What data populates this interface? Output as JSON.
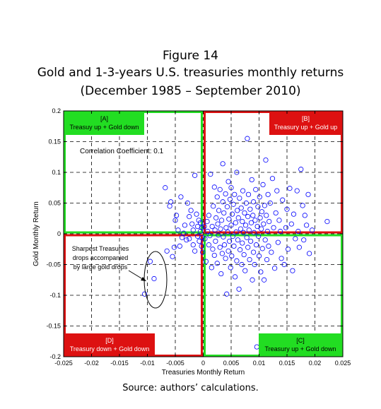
{
  "figure_label": "Figure 14",
  "title_line1": "Gold and 1-3-years U.S. treasuries monthly returns",
  "title_line2": "(December 1985 – September 2010)",
  "source_note": "Source: authors’ calculations.",
  "chart_data": {
    "type": "scatter",
    "xlabel": "Treasuries Monthly Return",
    "ylabel": "Gold Monthly Return",
    "xlim": [
      -0.025,
      0.025
    ],
    "ylim": [
      -0.2,
      0.2
    ],
    "xticks": [
      -0.025,
      -0.02,
      -0.015,
      -0.01,
      -0.005,
      0,
      0.005,
      0.01,
      0.015,
      0.02,
      0.025
    ],
    "xtick_labels": [
      "-0.025",
      "-0.02",
      "-0.015",
      "-0.01",
      "-0.005",
      "0",
      "0.005",
      "0.01",
      "0.015",
      "0.02",
      "0.025"
    ],
    "yticks": [
      -0.2,
      -0.15,
      -0.1,
      -0.05,
      0,
      0.05,
      0.1,
      0.15,
      0.2
    ],
    "ytick_labels": [
      "-0.2",
      "-0.15",
      "-0.1",
      "-0.05",
      "0",
      "0.05",
      "0.1",
      "0.15",
      "0.2"
    ],
    "grid": true,
    "marker_color": "#0000ff",
    "correlation_label": "Correlation Coefficient: 0.1",
    "quadrants": [
      {
        "id": "A",
        "tag": "[A]",
        "desc": "Treasuy up + Gold down",
        "color": "#22dd22",
        "label_color": "#000000"
      },
      {
        "id": "B",
        "tag": "[B]",
        "desc": "Treasury up + Gold up",
        "color": "#dd1111",
        "label_color": "#ffffff"
      },
      {
        "id": "C",
        "tag": "[C]",
        "desc": "Treasury up + Gold down",
        "color": "#22dd22",
        "label_color": "#000000"
      },
      {
        "id": "D",
        "tag": "[D]",
        "desc": "Treasury down + Gold down",
        "color": "#dd1111",
        "label_color": "#ffffff"
      }
    ],
    "annotation": {
      "lines": [
        "Sharpest Treasuries",
        "drops accompanied",
        "by large gold drops"
      ]
    },
    "points": [
      [
        -0.0105,
        -0.098
      ],
      [
        -0.0095,
        -0.045
      ],
      [
        -0.0088,
        -0.073
      ],
      [
        -0.0068,
        0.075
      ],
      [
        -0.0065,
        -0.028
      ],
      [
        -0.006,
        0.045
      ],
      [
        -0.0058,
        0.052
      ],
      [
        -0.0055,
        -0.037
      ],
      [
        -0.0052,
        -0.022
      ],
      [
        -0.005,
        0.022
      ],
      [
        -0.0048,
        0.03
      ],
      [
        -0.0045,
        0.006
      ],
      [
        -0.0042,
        -0.02
      ],
      [
        -0.004,
        0.06
      ],
      [
        -0.0038,
        -0.006
      ],
      [
        -0.0035,
        0.001
      ],
      [
        -0.0033,
        0.014
      ],
      [
        -0.003,
        -0.01
      ],
      [
        -0.0028,
        0.05
      ],
      [
        -0.0025,
        0.028
      ],
      [
        -0.0025,
        -0.008
      ],
      [
        -0.0022,
        0.038
      ],
      [
        -0.002,
        0.016
      ],
      [
        -0.0018,
        0.006
      ],
      [
        -0.0018,
        -0.018
      ],
      [
        -0.0015,
        0.095
      ],
      [
        -0.0015,
        -0.028
      ],
      [
        -0.0012,
        0.032
      ],
      [
        -0.001,
        0.012
      ],
      [
        -0.001,
        -0.004
      ],
      [
        -0.0008,
        0.022
      ],
      [
        -0.0007,
        -0.012
      ],
      [
        -0.0005,
        0.004
      ],
      [
        -0.0005,
        0.018
      ],
      [
        -0.0003,
        -0.02
      ],
      [
        -0.0002,
        0.01
      ],
      [
        -0.0002,
        -0.006
      ],
      [
        -0.0001,
        -0.03
      ],
      [
        0.0002,
        0.012
      ],
      [
        0.0003,
        -0.008
      ],
      [
        0.0005,
        -0.045
      ],
      [
        0.0007,
        0.02
      ],
      [
        0.0008,
        0.004
      ],
      [
        0.001,
        -0.018
      ],
      [
        0.001,
        0.03
      ],
      [
        0.0012,
        -0.003
      ],
      [
        0.0013,
        0.097
      ],
      [
        0.0015,
        -0.055
      ],
      [
        0.0016,
        0.012
      ],
      [
        0.0017,
        -0.025
      ],
      [
        0.0018,
        0.045
      ],
      [
        0.002,
        0.076
      ],
      [
        0.002,
        -0.035
      ],
      [
        0.0021,
        0.006
      ],
      [
        0.0022,
        -0.012
      ],
      [
        0.0023,
        0.026
      ],
      [
        0.0025,
        0.06
      ],
      [
        0.0025,
        -0.048
      ],
      [
        0.0026,
        0.016
      ],
      [
        0.0027,
        -0.002
      ],
      [
        0.0028,
        0.038
      ],
      [
        0.003,
        -0.022
      ],
      [
        0.003,
        0.072
      ],
      [
        0.0031,
        0.008
      ],
      [
        0.0032,
        -0.065
      ],
      [
        0.0033,
        0.022
      ],
      [
        0.0034,
        -0.032
      ],
      [
        0.0035,
        0.052
      ],
      [
        0.0035,
        0.114
      ],
      [
        0.0036,
        -0.005
      ],
      [
        0.0037,
        0.034
      ],
      [
        0.0038,
        -0.018
      ],
      [
        0.004,
        0.065
      ],
      [
        0.004,
        -0.04
      ],
      [
        0.0041,
        0.01
      ],
      [
        0.0042,
        -0.098
      ],
      [
        0.0043,
        0.044
      ],
      [
        0.0044,
        0.003
      ],
      [
        0.0045,
        -0.028
      ],
      [
        0.0045,
        0.085
      ],
      [
        0.0046,
        0.024
      ],
      [
        0.0047,
        -0.012
      ],
      [
        0.0048,
        0.056
      ],
      [
        0.0049,
        -0.055
      ],
      [
        0.005,
        0.014
      ],
      [
        0.005,
        0.075
      ],
      [
        0.0051,
        -0.036
      ],
      [
        0.0052,
        0.032
      ],
      [
        0.0053,
        -0.004
      ],
      [
        0.0054,
        0.048
      ],
      [
        0.0055,
        -0.02
      ],
      [
        0.0056,
        0.064
      ],
      [
        0.0057,
        -0.07
      ],
      [
        0.0058,
        0.018
      ],
      [
        0.0059,
        0.003
      ],
      [
        0.006,
        -0.044
      ],
      [
        0.006,
        0.1
      ],
      [
        0.0061,
        0.038
      ],
      [
        0.0062,
        -0.01
      ],
      [
        0.0063,
        0.026
      ],
      [
        0.0064,
        -0.09
      ],
      [
        0.0065,
        0.058
      ],
      [
        0.0066,
        -0.026
      ],
      [
        0.0067,
        0.008
      ],
      [
        0.0068,
        0.042
      ],
      [
        0.0069,
        -0.05
      ],
      [
        0.007,
        0.02
      ],
      [
        0.007,
        -0.015
      ],
      [
        0.0071,
        0.07
      ],
      [
        0.0072,
        0.002
      ],
      [
        0.0073,
        -0.034
      ],
      [
        0.0074,
        0.034
      ],
      [
        0.0075,
        -0.06
      ],
      [
        0.0076,
        0.014
      ],
      [
        0.0077,
        0.05
      ],
      [
        0.0078,
        -0.006
      ],
      [
        0.0079,
        0.155
      ],
      [
        0.008,
        0.028
      ],
      [
        0.008,
        -0.022
      ],
      [
        0.0081,
        0.064
      ],
      [
        0.0082,
        0.006
      ],
      [
        0.0083,
        -0.042
      ],
      [
        0.0084,
        0.04
      ],
      [
        0.0085,
        -0.012
      ],
      [
        0.0086,
        0.018
      ],
      [
        0.0087,
        0.088
      ],
      [
        0.0088,
        -0.075
      ],
      [
        0.0089,
        0.03
      ],
      [
        0.009,
        -0.03
      ],
      [
        0.009,
        0.052
      ],
      [
        0.0091,
        0.002
      ],
      [
        0.0092,
        -0.05
      ],
      [
        0.0093,
        0.022
      ],
      [
        0.0094,
        0.072
      ],
      [
        0.0095,
        -0.018
      ],
      [
        0.0096,
        -0.184
      ],
      [
        0.0097,
        0.012
      ],
      [
        0.0098,
        0.044
      ],
      [
        0.0099,
        -0.004
      ],
      [
        0.01,
        -0.036
      ],
      [
        0.0101,
        0.06
      ],
      [
        0.0102,
        0.026
      ],
      [
        0.0103,
        -0.062
      ],
      [
        0.0104,
        0.008
      ],
      [
        0.0105,
        0.036
      ],
      [
        0.0106,
        -0.024
      ],
      [
        0.0107,
        0.08
      ],
      [
        0.0108,
        0.016
      ],
      [
        0.0109,
        -0.075
      ],
      [
        0.011,
        0.046
      ],
      [
        0.0111,
        -0.01
      ],
      [
        0.0112,
        0.12
      ],
      [
        0.0113,
        0.03
      ],
      [
        0.0114,
        -0.042
      ],
      [
        0.0115,
        0.004
      ],
      [
        0.0116,
        0.064
      ],
      [
        0.0117,
        -0.02
      ],
      [
        0.0118,
        0.02
      ],
      [
        0.012,
        0.05
      ],
      [
        0.0122,
        -0.03
      ],
      [
        0.0124,
        0.09
      ],
      [
        0.0126,
        0.01
      ],
      [
        0.0128,
        -0.056
      ],
      [
        0.013,
        0.034
      ],
      [
        0.0132,
        0.07
      ],
      [
        0.0134,
        -0.014
      ],
      [
        0.0136,
        0.022
      ],
      [
        0.0138,
        0.004
      ],
      [
        0.014,
        -0.04
      ],
      [
        0.0142,
        0.055
      ],
      [
        0.0145,
        -0.05
      ],
      [
        0.0148,
        0.01
      ],
      [
        0.015,
        0.04
      ],
      [
        0.0152,
        -0.025
      ],
      [
        0.0155,
        0.074
      ],
      [
        0.0158,
        0.016
      ],
      [
        0.016,
        -0.06
      ],
      [
        0.0162,
        0.032
      ],
      [
        0.0165,
        -0.008
      ],
      [
        0.0168,
        0.07
      ],
      [
        0.017,
        0.004
      ],
      [
        0.0172,
        -0.022
      ],
      [
        0.0175,
        0.105
      ],
      [
        0.0178,
        0.046
      ],
      [
        0.018,
        -0.01
      ],
      [
        0.0182,
        0.03
      ],
      [
        0.0185,
        0.014
      ],
      [
        0.0188,
        0.064
      ],
      [
        0.019,
        -0.032
      ],
      [
        0.0195,
        0.006
      ],
      [
        0.0222,
        0.02
      ]
    ]
  }
}
